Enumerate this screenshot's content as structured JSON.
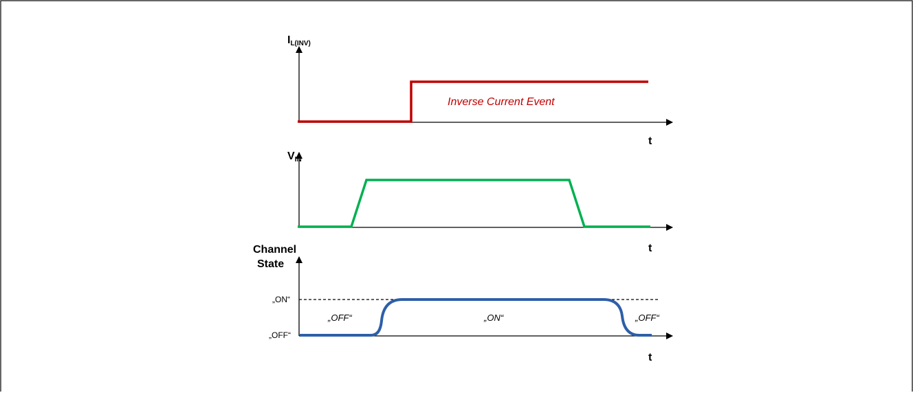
{
  "colors": {
    "frame": "#000000",
    "inverse_current": "#C00000",
    "vin": "#00B050",
    "channel_state": "#2E5FA8"
  },
  "panels": {
    "current": {
      "ylabel_main": "I",
      "ylabel_sub": "L(INV)",
      "xlabel": "t",
      "annotation": "Inverse Current Event"
    },
    "vin": {
      "ylabel_main": "V",
      "ylabel_sub": "IN",
      "xlabel": "t"
    },
    "state": {
      "ylabel_line1": "Channel",
      "ylabel_line2": "State",
      "xlabel": "t",
      "level_on": "„ON“",
      "level_off": "„OFF“",
      "region_off_left": "„OFF“",
      "region_on": "„ON“",
      "region_off_right": "„OFF“"
    }
  }
}
